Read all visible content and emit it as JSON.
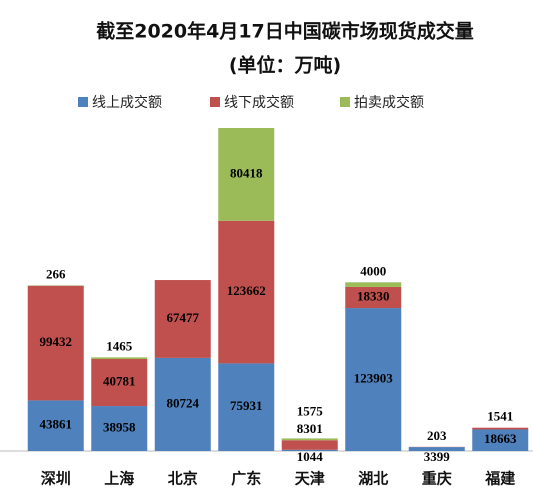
{
  "chart_data": {
    "type": "stacked_bar",
    "title": "截至2020年4月17日中国碳市场现货成交量",
    "subtitle": "(单位：万吨)",
    "categories": [
      "深圳",
      "上海",
      "北京",
      "广东",
      "天津",
      "湖北",
      "重庆",
      "福建"
    ],
    "series": [
      {
        "name": "线上成交额",
        "color": "#4f81bd",
        "values": [
          43861,
          38958,
          80724,
          75931,
          1044,
          123903,
          3399,
          18663
        ]
      },
      {
        "name": "线下成交额",
        "color": "#c0504d",
        "values": [
          99432,
          40781,
          67477,
          123662,
          8301,
          18330,
          203,
          1541
        ]
      },
      {
        "name": "拍卖成交额",
        "color": "#9bbb59",
        "values": [
          266,
          1465,
          null,
          80418,
          1575,
          4000,
          null,
          null
        ]
      }
    ],
    "legend": "top"
  }
}
